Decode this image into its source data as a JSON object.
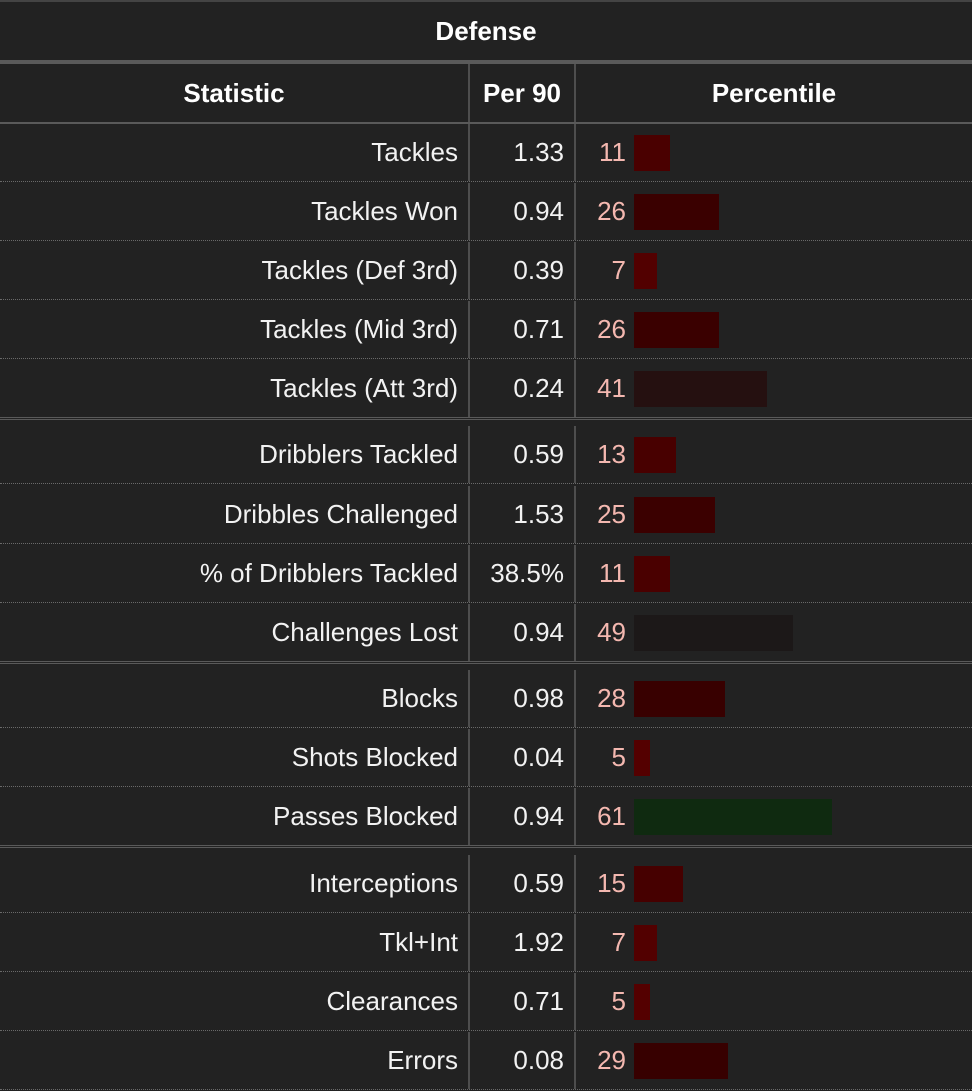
{
  "table": {
    "title": "Defense",
    "columns": {
      "statistic": "Statistic",
      "per90": "Per 90",
      "percentile": "Percentile"
    },
    "rows": [
      {
        "stat": "Tackles",
        "per90": "1.33",
        "percentile": 11,
        "bar_color": "#4a0000"
      },
      {
        "stat": "Tackles Won",
        "per90": "0.94",
        "percentile": 26,
        "bar_color": "#3a0000"
      },
      {
        "stat": "Tackles (Def 3rd)",
        "per90": "0.39",
        "percentile": 7,
        "bar_color": "#520000"
      },
      {
        "stat": "Tackles (Mid 3rd)",
        "per90": "0.71",
        "percentile": 26,
        "bar_color": "#3a0000"
      },
      {
        "stat": "Tackles (Att 3rd)",
        "per90": "0.24",
        "percentile": 41,
        "bar_color": "#251010"
      },
      {
        "stat": "Dribblers Tackled",
        "per90": "0.59",
        "percentile": 13,
        "bar_color": "#480000"
      },
      {
        "stat": "Dribbles Challenged",
        "per90": "1.53",
        "percentile": 25,
        "bar_color": "#3b0000"
      },
      {
        "stat": "% of Dribblers Tackled",
        "per90": "38.5%",
        "percentile": 11,
        "bar_color": "#4a0000"
      },
      {
        "stat": "Challenges Lost",
        "per90": "0.94",
        "percentile": 49,
        "bar_color": "#1c1818"
      },
      {
        "stat": "Blocks",
        "per90": "0.98",
        "percentile": 28,
        "bar_color": "#380000"
      },
      {
        "stat": "Shots Blocked",
        "per90": "0.04",
        "percentile": 5,
        "bar_color": "#540000"
      },
      {
        "stat": "Passes Blocked",
        "per90": "0.94",
        "percentile": 61,
        "bar_color": "#0f2a10"
      },
      {
        "stat": "Interceptions",
        "per90": "0.59",
        "percentile": 15,
        "bar_color": "#460000"
      },
      {
        "stat": "Tkl+Int",
        "per90": "1.92",
        "percentile": 7,
        "bar_color": "#520000"
      },
      {
        "stat": "Clearances",
        "per90": "0.71",
        "percentile": 5,
        "bar_color": "#540000"
      },
      {
        "stat": "Errors",
        "per90": "0.08",
        "percentile": 29,
        "bar_color": "#370000"
      }
    ]
  }
}
